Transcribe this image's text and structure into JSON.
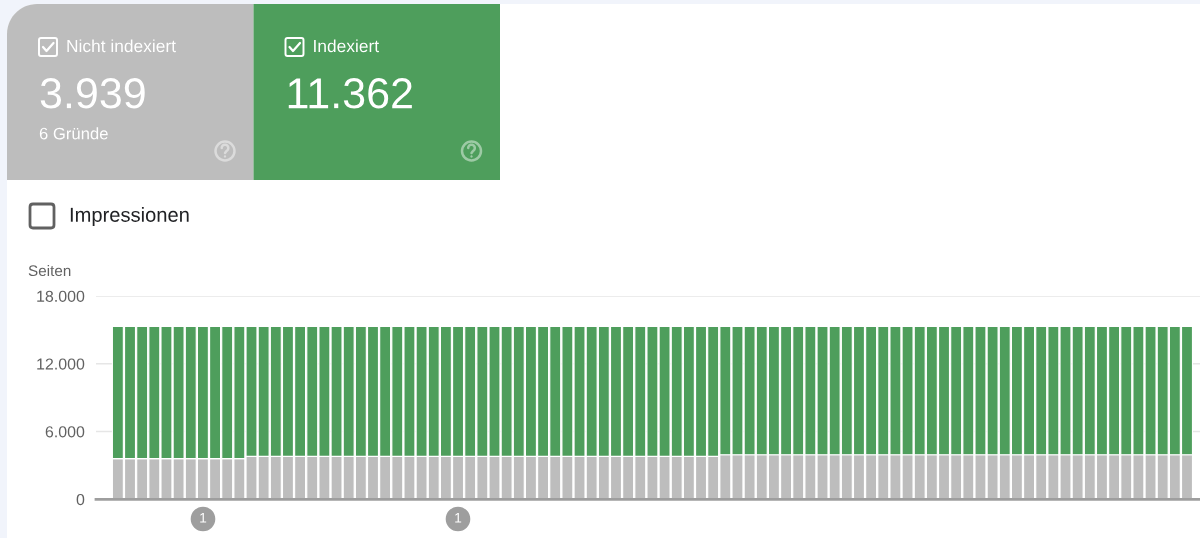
{
  "chart_data": {
    "type": "bar",
    "stacked": true,
    "categories": [
      null,
      null,
      null,
      null,
      null,
      null,
      null,
      null,
      null,
      null,
      null,
      null,
      null,
      null,
      null,
      null,
      null,
      null,
      null,
      null,
      null,
      null,
      null,
      null,
      null,
      null,
      null,
      null,
      null,
      null,
      null,
      null,
      null,
      null,
      null,
      null,
      null,
      null,
      null,
      null,
      null,
      null,
      null,
      null,
      null,
      null,
      null,
      null,
      null,
      null,
      null,
      null,
      null,
      null,
      null,
      null,
      null,
      null,
      null,
      null,
      null,
      null,
      null,
      null,
      null,
      null,
      null,
      null,
      null,
      null,
      null,
      null,
      null,
      null,
      null,
      null,
      null,
      null,
      null,
      null,
      null,
      null,
      null,
      null,
      null,
      null,
      null,
      null,
      null
    ],
    "series": [
      {
        "name": "Nicht indexiert",
        "color": "#bdbdbd",
        "values": [
          3600,
          3600,
          3600,
          3600,
          3600,
          3600,
          3600,
          3600,
          3600,
          3600,
          3600,
          3800,
          3800,
          3800,
          3800,
          3800,
          3800,
          3800,
          3800,
          3800,
          3800,
          3800,
          3800,
          3800,
          3800,
          3800,
          3800,
          3800,
          3800,
          3800,
          3800,
          3800,
          3800,
          3800,
          3800,
          3800,
          3800,
          3800,
          3800,
          3800,
          3800,
          3800,
          3800,
          3800,
          3800,
          3800,
          3800,
          3800,
          3800,
          3800,
          3939,
          3939,
          3939,
          3939,
          3939,
          3939,
          3939,
          3939,
          3939,
          3939,
          3939,
          3939,
          3939,
          3939,
          3939,
          3939,
          3939,
          3939,
          3939,
          3939,
          3939,
          3939,
          3939,
          3939,
          3939,
          3939,
          3939,
          3939,
          3939,
          3939,
          3939,
          3939,
          3939,
          3939,
          3939,
          3939,
          3939,
          3939,
          3939
        ]
      },
      {
        "name": "Indexiert",
        "color": "#4e9e5c",
        "values": [
          11700,
          11700,
          11700,
          11700,
          11700,
          11700,
          11700,
          11700,
          11700,
          11700,
          11700,
          11500,
          11500,
          11500,
          11500,
          11500,
          11500,
          11500,
          11500,
          11500,
          11500,
          11500,
          11500,
          11500,
          11500,
          11500,
          11500,
          11500,
          11500,
          11500,
          11500,
          11500,
          11500,
          11500,
          11500,
          11500,
          11500,
          11500,
          11500,
          11500,
          11500,
          11500,
          11500,
          11500,
          11500,
          11500,
          11500,
          11500,
          11500,
          11500,
          11362,
          11362,
          11362,
          11362,
          11362,
          11362,
          11362,
          11362,
          11362,
          11362,
          11362,
          11362,
          11362,
          11362,
          11362,
          11362,
          11362,
          11362,
          11362,
          11362,
          11362,
          11362,
          11362,
          11362,
          11362,
          11362,
          11362,
          11362,
          11362,
          11362,
          11362,
          11362,
          11362,
          11362,
          11362,
          11362,
          11362,
          11362,
          11362
        ]
      }
    ],
    "ylabel": "Seiten",
    "ylim": [
      0,
      18000
    ],
    "yticks": [
      0,
      {
        "value": 6000,
        "label": "6.000"
      },
      {
        "value": 12000,
        "label": "12.000"
      },
      {
        "value": 18000,
        "label": "18.000"
      }
    ],
    "grid": "y",
    "legend": "top left",
    "annotations": [
      "3.939",
      "6 Gründe",
      "11.362",
      "Impressionen",
      "1",
      "1"
    ]
  }
}
